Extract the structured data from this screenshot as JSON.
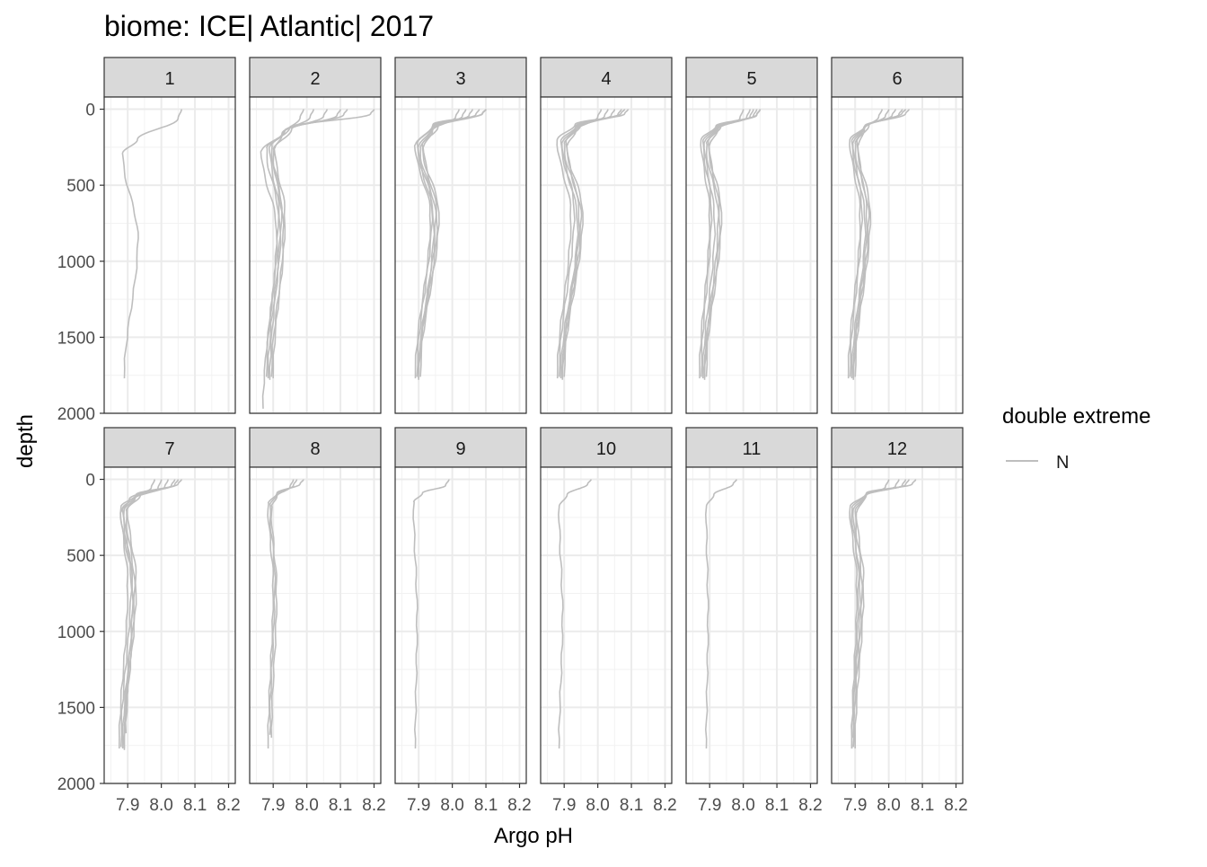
{
  "chart_data": {
    "type": "line",
    "title": "biome: ICE| Atlantic| 2017",
    "xlabel": "Argo pH",
    "ylabel": "depth",
    "xlim": [
      7.83,
      8.22
    ],
    "ylim": [
      2000,
      -80
    ],
    "x_reversed": false,
    "y_reversed": true,
    "x_ticks": [
      {
        "value": 7.9,
        "label": "7.9"
      },
      {
        "value": 8.0,
        "label": "8.0"
      },
      {
        "value": 8.1,
        "label": "8.1"
      },
      {
        "value": 8.2,
        "label": "8.2"
      }
    ],
    "y_ticks": [
      {
        "value": 0,
        "label": "0"
      },
      {
        "value": 500,
        "label": "500"
      },
      {
        "value": 1000,
        "label": "1000"
      },
      {
        "value": 1500,
        "label": "1500"
      },
      {
        "value": 2000,
        "label": "2000"
      }
    ],
    "grid": true,
    "facet_layout": {
      "rows": 2,
      "cols": 6
    },
    "legend": {
      "title": "double extreme",
      "position": "right",
      "entries": [
        {
          "label": "N",
          "color": "#bebebe"
        }
      ]
    },
    "line_color": "#bebebe",
    "panels": [
      {
        "label": "1",
        "profiles": [
          {
            "surface_ph": 8.06,
            "mixed_depth": 60,
            "drop_depth": 200,
            "min_ph": 7.885,
            "min_depth": 290,
            "deep_ph": 7.93,
            "mid_depth": 850,
            "end_ph": 7.89,
            "max_depth": 1770
          }
        ]
      },
      {
        "label": "2",
        "profiles": [
          {
            "surface_ph": 8.2,
            "mixed_depth": 30,
            "drop_depth": 120,
            "min_ph": 7.865,
            "min_depth": 280,
            "deep_ph": 7.91,
            "mid_depth": 800,
            "end_ph": 7.87,
            "max_depth": 1970
          },
          {
            "surface_ph": 8.1,
            "mixed_depth": 40,
            "drop_depth": 140,
            "min_ph": 7.88,
            "min_depth": 260,
            "deep_ph": 7.915,
            "mid_depth": 700,
            "end_ph": 7.88,
            "max_depth": 1760
          },
          {
            "surface_ph": 8.06,
            "mixed_depth": 45,
            "drop_depth": 150,
            "min_ph": 7.89,
            "min_depth": 250,
            "deep_ph": 7.92,
            "mid_depth": 750,
            "end_ph": 7.885,
            "max_depth": 1770
          },
          {
            "surface_ph": 8.02,
            "mixed_depth": 50,
            "drop_depth": 160,
            "min_ph": 7.895,
            "min_depth": 240,
            "deep_ph": 7.925,
            "mid_depth": 650,
            "end_ph": 7.89,
            "max_depth": 1780
          },
          {
            "surface_ph": 8.12,
            "mixed_depth": 35,
            "drop_depth": 130,
            "min_ph": 7.9,
            "min_depth": 270,
            "deep_ph": 7.93,
            "mid_depth": 800,
            "end_ph": 7.895,
            "max_depth": 1760
          },
          {
            "surface_ph": 7.99,
            "mixed_depth": 55,
            "drop_depth": 170,
            "min_ph": 7.905,
            "min_depth": 260,
            "deep_ph": 7.935,
            "mid_depth": 700,
            "end_ph": 7.9,
            "max_depth": 1770
          }
        ]
      },
      {
        "label": "3",
        "profiles": [
          {
            "surface_ph": 8.1,
            "mixed_depth": 30,
            "drop_depth": 100,
            "min_ph": 7.89,
            "min_depth": 240,
            "deep_ph": 7.935,
            "mid_depth": 700,
            "end_ph": 7.89,
            "max_depth": 1770
          },
          {
            "surface_ph": 8.08,
            "mixed_depth": 35,
            "drop_depth": 110,
            "min_ph": 7.895,
            "min_depth": 230,
            "deep_ph": 7.94,
            "mid_depth": 650,
            "end_ph": 7.895,
            "max_depth": 1760
          },
          {
            "surface_ph": 8.06,
            "mixed_depth": 40,
            "drop_depth": 120,
            "min_ph": 7.9,
            "min_depth": 250,
            "deep_ph": 7.945,
            "mid_depth": 750,
            "end_ph": 7.9,
            "max_depth": 1770
          },
          {
            "surface_ph": 8.04,
            "mixed_depth": 45,
            "drop_depth": 130,
            "min_ph": 7.905,
            "min_depth": 260,
            "deep_ph": 7.95,
            "mid_depth": 700,
            "end_ph": 7.9,
            "max_depth": 1780
          },
          {
            "surface_ph": 8.1,
            "mixed_depth": 25,
            "drop_depth": 115,
            "min_ph": 7.91,
            "min_depth": 240,
            "deep_ph": 7.96,
            "mid_depth": 680,
            "end_ph": 7.905,
            "max_depth": 1760
          },
          {
            "surface_ph": 8.02,
            "mixed_depth": 50,
            "drop_depth": 140,
            "min_ph": 7.915,
            "min_depth": 250,
            "deep_ph": 7.955,
            "mid_depth": 720,
            "end_ph": 7.9,
            "max_depth": 1770
          }
        ]
      },
      {
        "label": "4",
        "profiles": [
          {
            "surface_ph": 8.09,
            "mixed_depth": 30,
            "drop_depth": 100,
            "min_ph": 7.88,
            "min_depth": 200,
            "deep_ph": 7.92,
            "mid_depth": 700,
            "end_ph": 7.88,
            "max_depth": 1770
          },
          {
            "surface_ph": 8.07,
            "mixed_depth": 35,
            "drop_depth": 110,
            "min_ph": 7.89,
            "min_depth": 210,
            "deep_ph": 7.93,
            "mid_depth": 650,
            "end_ph": 7.885,
            "max_depth": 1760
          },
          {
            "surface_ph": 8.05,
            "mixed_depth": 40,
            "drop_depth": 120,
            "min_ph": 7.895,
            "min_depth": 220,
            "deep_ph": 7.94,
            "mid_depth": 750,
            "end_ph": 7.89,
            "max_depth": 1770
          },
          {
            "surface_ph": 8.03,
            "mixed_depth": 45,
            "drop_depth": 130,
            "min_ph": 7.9,
            "min_depth": 230,
            "deep_ph": 7.95,
            "mid_depth": 700,
            "end_ph": 7.895,
            "max_depth": 1780
          },
          {
            "surface_ph": 8.08,
            "mixed_depth": 25,
            "drop_depth": 105,
            "min_ph": 7.905,
            "min_depth": 215,
            "deep_ph": 7.955,
            "mid_depth": 680,
            "end_ph": 7.9,
            "max_depth": 1760
          },
          {
            "surface_ph": 8.01,
            "mixed_depth": 50,
            "drop_depth": 140,
            "min_ph": 7.91,
            "min_depth": 240,
            "deep_ph": 7.945,
            "mid_depth": 720,
            "end_ph": 7.895,
            "max_depth": 1770
          }
        ]
      },
      {
        "label": "5",
        "profiles": [
          {
            "surface_ph": 8.05,
            "mixed_depth": 40,
            "drop_depth": 110,
            "min_ph": 7.875,
            "min_depth": 200,
            "deep_ph": 7.9,
            "mid_depth": 700,
            "end_ph": 7.87,
            "max_depth": 1770
          },
          {
            "surface_ph": 8.04,
            "mixed_depth": 45,
            "drop_depth": 115,
            "min_ph": 7.88,
            "min_depth": 210,
            "deep_ph": 7.905,
            "mid_depth": 650,
            "end_ph": 7.875,
            "max_depth": 1760
          },
          {
            "surface_ph": 8.03,
            "mixed_depth": 50,
            "drop_depth": 120,
            "min_ph": 7.885,
            "min_depth": 220,
            "deep_ph": 7.915,
            "mid_depth": 750,
            "end_ph": 7.88,
            "max_depth": 1770
          },
          {
            "surface_ph": 8.02,
            "mixed_depth": 55,
            "drop_depth": 125,
            "min_ph": 7.89,
            "min_depth": 230,
            "deep_ph": 7.925,
            "mid_depth": 700,
            "end_ph": 7.885,
            "max_depth": 1780
          },
          {
            "surface_ph": 8.05,
            "mixed_depth": 35,
            "drop_depth": 110,
            "min_ph": 7.895,
            "min_depth": 215,
            "deep_ph": 7.935,
            "mid_depth": 680,
            "end_ph": 7.89,
            "max_depth": 1760
          },
          {
            "surface_ph": 8.0,
            "mixed_depth": 60,
            "drop_depth": 130,
            "min_ph": 7.9,
            "min_depth": 240,
            "deep_ph": 7.93,
            "mid_depth": 720,
            "end_ph": 7.885,
            "max_depth": 1770
          }
        ]
      },
      {
        "label": "6",
        "profiles": [
          {
            "surface_ph": 8.06,
            "mixed_depth": 30,
            "drop_depth": 110,
            "min_ph": 7.885,
            "min_depth": 200,
            "deep_ph": 7.915,
            "mid_depth": 700,
            "end_ph": 7.88,
            "max_depth": 1770
          },
          {
            "surface_ph": 8.04,
            "mixed_depth": 35,
            "drop_depth": 115,
            "min_ph": 7.89,
            "min_depth": 210,
            "deep_ph": 7.92,
            "mid_depth": 650,
            "end_ph": 7.885,
            "max_depth": 1760
          },
          {
            "surface_ph": 8.02,
            "mixed_depth": 40,
            "drop_depth": 120,
            "min_ph": 7.895,
            "min_depth": 220,
            "deep_ph": 7.93,
            "mid_depth": 750,
            "end_ph": 7.89,
            "max_depth": 1770
          },
          {
            "surface_ph": 8.0,
            "mixed_depth": 45,
            "drop_depth": 125,
            "min_ph": 7.9,
            "min_depth": 230,
            "deep_ph": 7.94,
            "mid_depth": 700,
            "end_ph": 7.895,
            "max_depth": 1780
          },
          {
            "surface_ph": 8.05,
            "mixed_depth": 25,
            "drop_depth": 105,
            "min_ph": 7.905,
            "min_depth": 215,
            "deep_ph": 7.945,
            "mid_depth": 680,
            "end_ph": 7.9,
            "max_depth": 1760
          },
          {
            "surface_ph": 7.98,
            "mixed_depth": 50,
            "drop_depth": 130,
            "min_ph": 7.91,
            "min_depth": 240,
            "deep_ph": 7.935,
            "mid_depth": 720,
            "end_ph": 7.895,
            "max_depth": 1770
          }
        ]
      },
      {
        "label": "7",
        "profiles": [
          {
            "surface_ph": 8.06,
            "mixed_depth": 30,
            "drop_depth": 100,
            "min_ph": 7.88,
            "min_depth": 180,
            "deep_ph": 7.9,
            "mid_depth": 700,
            "end_ph": 7.875,
            "max_depth": 1770
          },
          {
            "surface_ph": 8.04,
            "mixed_depth": 40,
            "drop_depth": 110,
            "min_ph": 7.885,
            "min_depth": 190,
            "deep_ph": 7.91,
            "mid_depth": 650,
            "end_ph": 7.88,
            "max_depth": 1760
          },
          {
            "surface_ph": 8.02,
            "mixed_depth": 50,
            "drop_depth": 120,
            "min_ph": 7.89,
            "min_depth": 200,
            "deep_ph": 7.915,
            "mid_depth": 750,
            "end_ph": 7.885,
            "max_depth": 1770
          },
          {
            "surface_ph": 8.0,
            "mixed_depth": 60,
            "drop_depth": 125,
            "min_ph": 7.895,
            "min_depth": 210,
            "deep_ph": 7.92,
            "mid_depth": 700,
            "end_ph": 7.89,
            "max_depth": 1780
          },
          {
            "surface_ph": 8.05,
            "mixed_depth": 35,
            "drop_depth": 105,
            "min_ph": 7.9,
            "min_depth": 195,
            "deep_ph": 7.925,
            "mid_depth": 680,
            "end_ph": 7.895,
            "max_depth": 1670
          },
          {
            "surface_ph": 7.98,
            "mixed_depth": 55,
            "drop_depth": 130,
            "min_ph": 7.88,
            "min_depth": 220,
            "deep_ph": 7.915,
            "mid_depth": 720,
            "end_ph": 7.89,
            "max_depth": 1770
          }
        ]
      },
      {
        "label": "8",
        "profiles": [
          {
            "surface_ph": 7.99,
            "mixed_depth": 30,
            "drop_depth": 90,
            "min_ph": 7.885,
            "min_depth": 160,
            "deep_ph": 7.9,
            "mid_depth": 700,
            "end_ph": 7.885,
            "max_depth": 1770
          },
          {
            "surface_ph": 7.97,
            "mixed_depth": 40,
            "drop_depth": 100,
            "min_ph": 7.89,
            "min_depth": 170,
            "deep_ph": 7.905,
            "mid_depth": 650,
            "end_ph": 7.89,
            "max_depth": 1680
          },
          {
            "surface_ph": 7.96,
            "mixed_depth": 50,
            "drop_depth": 110,
            "min_ph": 7.895,
            "min_depth": 180,
            "deep_ph": 7.91,
            "mid_depth": 750,
            "end_ph": 7.895,
            "max_depth": 1700
          }
        ]
      },
      {
        "label": "9",
        "profiles": [
          {
            "surface_ph": 7.99,
            "mixed_depth": 40,
            "drop_depth": 90,
            "min_ph": 7.885,
            "min_depth": 150,
            "deep_ph": 7.895,
            "mid_depth": 900,
            "end_ph": 7.89,
            "max_depth": 1770
          }
        ]
      },
      {
        "label": "10",
        "profiles": [
          {
            "surface_ph": 7.98,
            "mixed_depth": 30,
            "drop_depth": 100,
            "min_ph": 7.885,
            "min_depth": 180,
            "deep_ph": 7.895,
            "mid_depth": 900,
            "end_ph": 7.885,
            "max_depth": 1770
          }
        ]
      },
      {
        "label": "11",
        "profiles": [
          {
            "surface_ph": 7.98,
            "mixed_depth": 30,
            "drop_depth": 100,
            "min_ph": 7.89,
            "min_depth": 180,
            "deep_ph": 7.895,
            "mid_depth": 900,
            "end_ph": 7.89,
            "max_depth": 1770
          }
        ]
      },
      {
        "label": "12",
        "profiles": [
          {
            "surface_ph": 8.08,
            "mixed_depth": 30,
            "drop_depth": 90,
            "min_ph": 7.885,
            "min_depth": 180,
            "deep_ph": 7.905,
            "mid_depth": 700,
            "end_ph": 7.89,
            "max_depth": 1770
          },
          {
            "surface_ph": 8.06,
            "mixed_depth": 35,
            "drop_depth": 95,
            "min_ph": 7.89,
            "min_depth": 190,
            "deep_ph": 7.91,
            "mid_depth": 650,
            "end_ph": 7.895,
            "max_depth": 1700
          },
          {
            "surface_ph": 8.05,
            "mixed_depth": 40,
            "drop_depth": 100,
            "min_ph": 7.895,
            "min_depth": 200,
            "deep_ph": 7.915,
            "mid_depth": 750,
            "end_ph": 7.89,
            "max_depth": 1770
          },
          {
            "surface_ph": 8.03,
            "mixed_depth": 45,
            "drop_depth": 105,
            "min_ph": 7.9,
            "min_depth": 210,
            "deep_ph": 7.92,
            "mid_depth": 700,
            "end_ph": 7.895,
            "max_depth": 1760
          },
          {
            "surface_ph": 8.0,
            "mixed_depth": 50,
            "drop_depth": 110,
            "min_ph": 7.905,
            "min_depth": 220,
            "deep_ph": 7.925,
            "mid_depth": 680,
            "end_ph": 7.9,
            "max_depth": 1770
          }
        ]
      }
    ]
  }
}
